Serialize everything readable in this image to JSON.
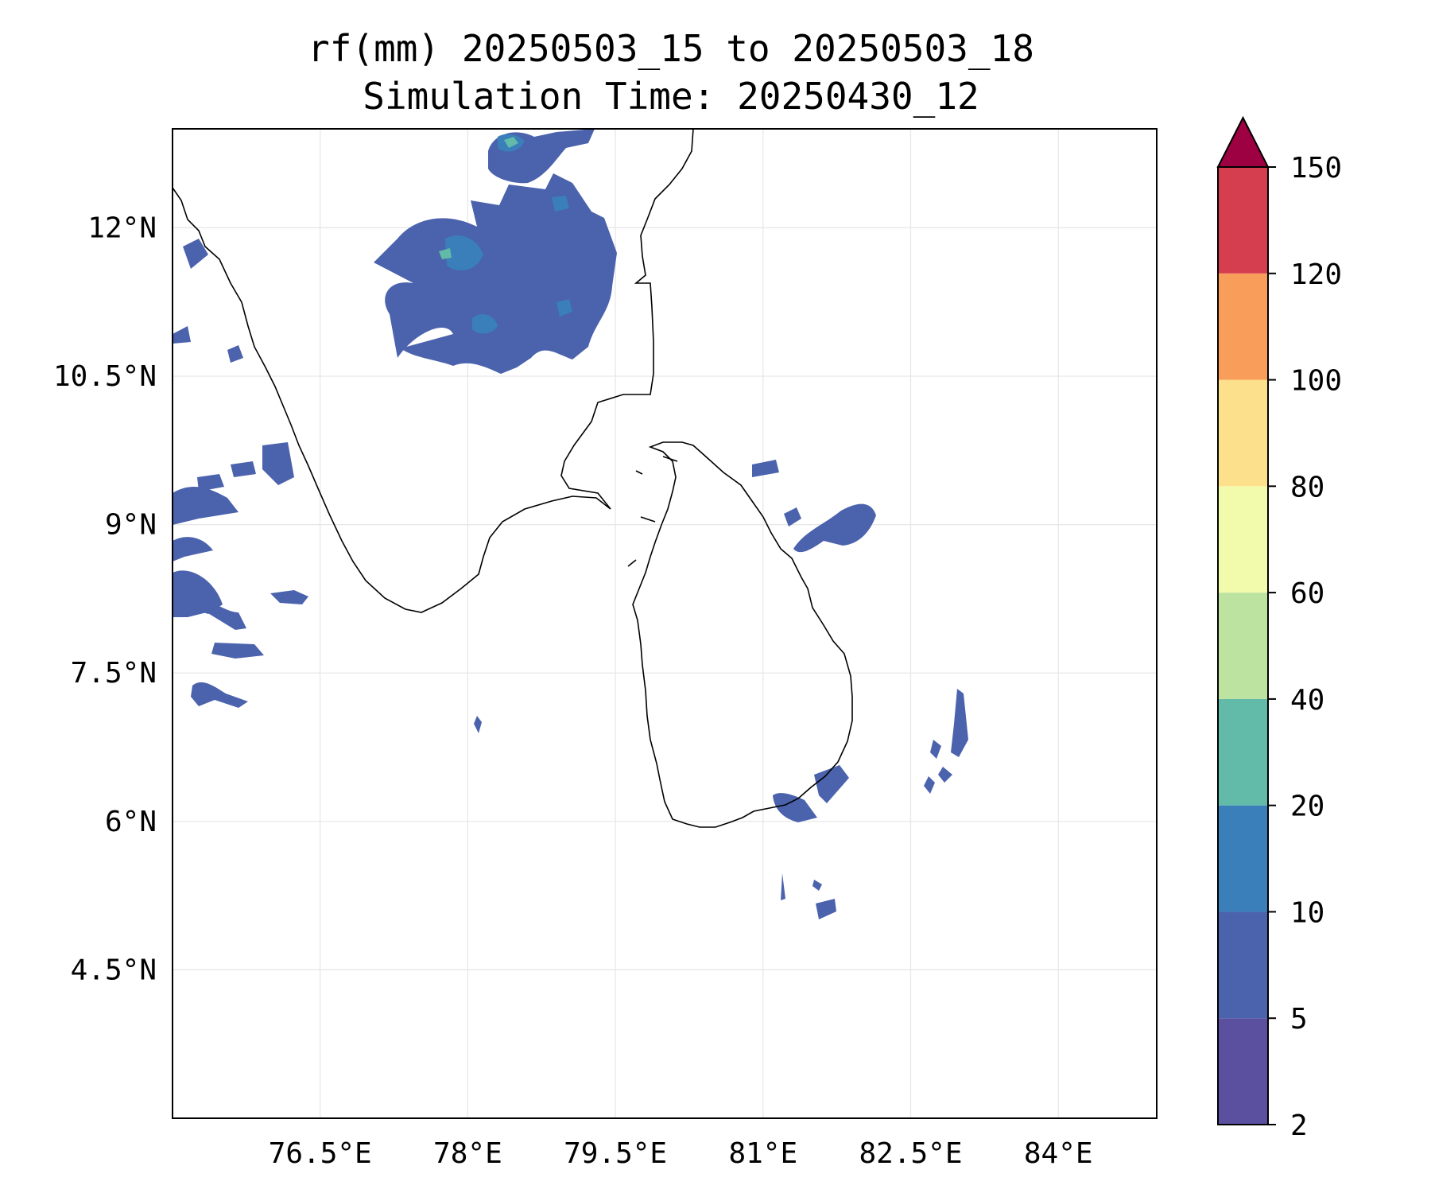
{
  "title": {
    "line1": "rf(mm) 20250503_15 to 20250503_18",
    "line2": "Simulation Time: 20250430_12"
  },
  "map": {
    "lon_range": [
      75.0,
      85.0
    ],
    "lat_range": [
      3.0,
      13.0
    ],
    "grid": true,
    "lon_ticks": [
      {
        "value": 76.5,
        "label": "76.5°E"
      },
      {
        "value": 78.0,
        "label": "78°E"
      },
      {
        "value": 79.5,
        "label": "79.5°E"
      },
      {
        "value": 81.0,
        "label": "81°E"
      },
      {
        "value": 82.5,
        "label": "82.5°E"
      },
      {
        "value": 84.0,
        "label": "84°E"
      }
    ],
    "lat_ticks": [
      {
        "value": 12.0,
        "label": "12°N"
      },
      {
        "value": 10.5,
        "label": "10.5°N"
      },
      {
        "value": 9.0,
        "label": "9°N"
      },
      {
        "value": 7.5,
        "label": "7.5°N"
      },
      {
        "value": 6.0,
        "label": "6°N"
      },
      {
        "value": 4.5,
        "label": "4.5°N"
      }
    ]
  },
  "colorbar": {
    "levels": [
      {
        "label": "2",
        "color": "#5b50a0"
      },
      {
        "label": "5",
        "color": "#4b62ad"
      },
      {
        "label": "10",
        "color": "#3a7fba"
      },
      {
        "label": "20",
        "color": "#62bba8"
      },
      {
        "label": "40",
        "color": "#bde3a1"
      },
      {
        "label": "60",
        "color": "#f2faac"
      },
      {
        "label": "80",
        "color": "#fde08b"
      },
      {
        "label": "100",
        "color": "#f99d5b"
      },
      {
        "label": "120",
        "color": "#d53e4f"
      },
      {
        "label": "150",
        "color": "#9e0142"
      }
    ],
    "extend": "max"
  }
}
